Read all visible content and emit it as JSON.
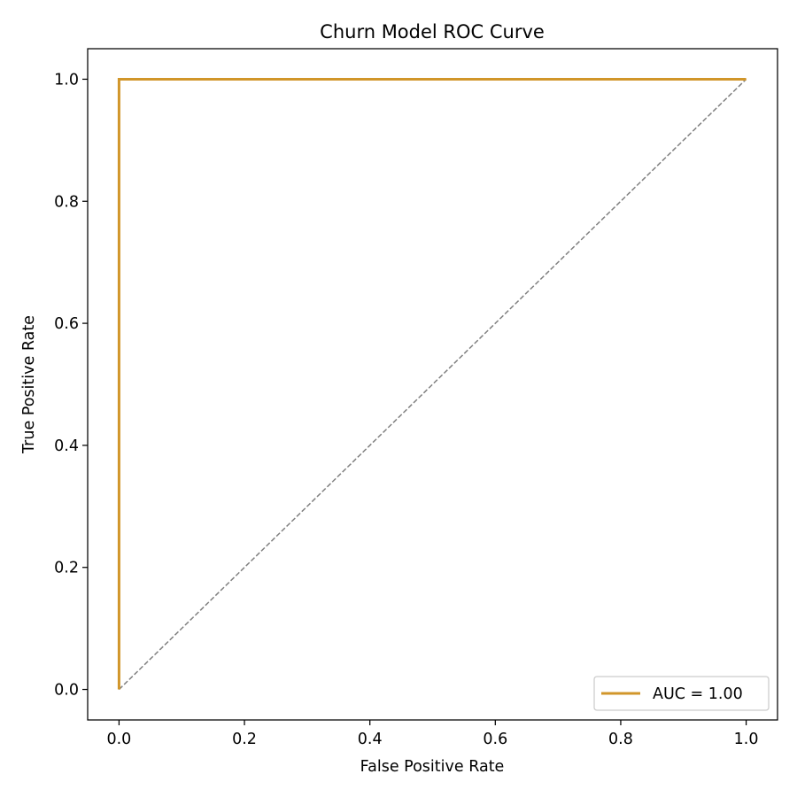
{
  "chart_data": {
    "type": "line",
    "title": "Churn Model ROC Curve",
    "xlabel": "False Positive Rate",
    "ylabel": "True Positive Rate",
    "xlim": [
      -0.05,
      1.05
    ],
    "ylim": [
      -0.05,
      1.05
    ],
    "xticks": [
      0.0,
      0.2,
      0.4,
      0.6,
      0.8,
      1.0
    ],
    "yticks": [
      0.0,
      0.2,
      0.4,
      0.6,
      0.8,
      1.0
    ],
    "xtick_labels": [
      "0.0",
      "0.2",
      "0.4",
      "0.6",
      "0.8",
      "1.0"
    ],
    "ytick_labels": [
      "0.0",
      "0.2",
      "0.4",
      "0.6",
      "0.8",
      "1.0"
    ],
    "grid": false,
    "legend_position": "lower-right",
    "series": [
      {
        "name": "AUC = 1.00",
        "color": "#d1962a",
        "style": "solid",
        "x": [
          0.0,
          0.0,
          1.0
        ],
        "y": [
          0.0,
          1.0,
          1.0
        ]
      },
      {
        "color": "#808080",
        "style": "dashed",
        "x": [
          0.0,
          1.0
        ],
        "y": [
          0.0,
          1.0
        ]
      }
    ]
  }
}
